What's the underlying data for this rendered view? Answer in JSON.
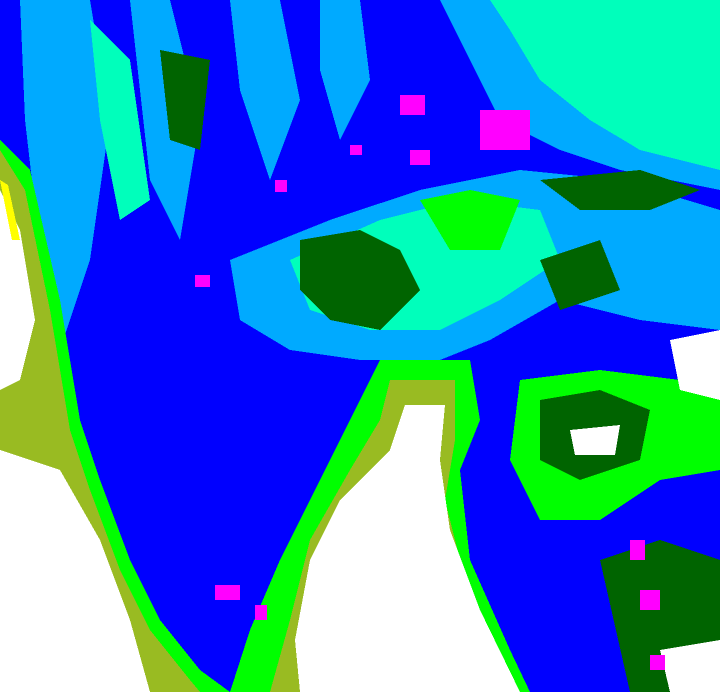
{
  "map": {
    "type": "classified-raster",
    "colors": {
      "deep": "#0000ff",
      "light_blue": "#00aaff",
      "aqua": "#00ffbb",
      "dark_green": "#006400",
      "green": "#00ff00",
      "olive": "#99bb22",
      "white": "#ffffff",
      "magenta": "#ff00ff",
      "yellow": "#ffff00"
    }
  }
}
